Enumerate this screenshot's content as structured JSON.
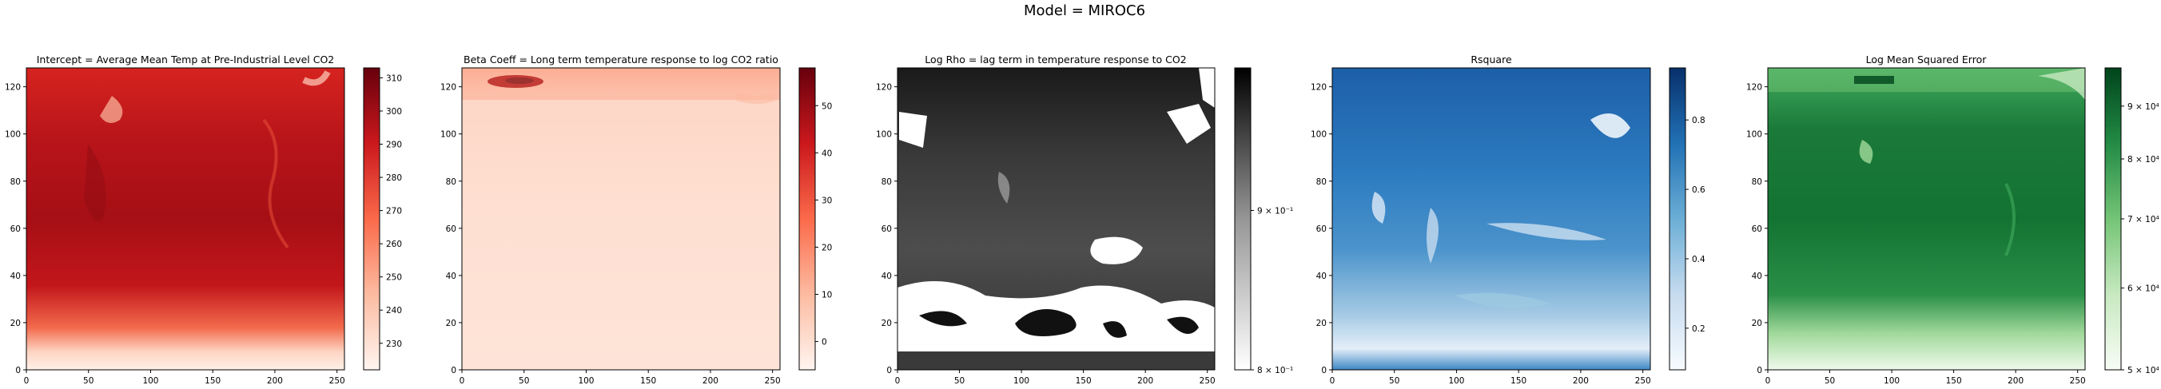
{
  "figure": {
    "suptitle": "Model = MIROC6"
  },
  "chart_data": [
    {
      "type": "heatmap",
      "title": "Intercept = Average Mean Temp at Pre-Industrial Level CO2",
      "cmap": "Reds",
      "xlim": [
        0,
        256
      ],
      "ylim": [
        0,
        128
      ],
      "xticks": [
        "0",
        "50",
        "100",
        "150",
        "200",
        "250"
      ],
      "yticks": [
        "0",
        "20",
        "40",
        "60",
        "80",
        "100",
        "120"
      ],
      "colorbar": {
        "range": [
          222,
          313
        ],
        "ticks": [
          230,
          240,
          250,
          260,
          270,
          280,
          290,
          300,
          310
        ],
        "tick_labels": [
          "230",
          "240",
          "250",
          "260",
          "270",
          "280",
          "290",
          "300",
          "310"
        ],
        "scale": "linear"
      }
    },
    {
      "type": "heatmap",
      "title": "Beta Coeff = Long term temperature response to log CO2 ratio",
      "cmap": "Reds",
      "xlim": [
        0,
        256
      ],
      "ylim": [
        0,
        128
      ],
      "xticks": [
        "0",
        "50",
        "100",
        "150",
        "200",
        "250"
      ],
      "yticks": [
        "0",
        "20",
        "40",
        "60",
        "80",
        "100",
        "120"
      ],
      "colorbar": {
        "range": [
          -6,
          58
        ],
        "ticks": [
          0,
          10,
          20,
          30,
          40,
          50
        ],
        "tick_labels": [
          "0",
          "10",
          "20",
          "30",
          "40",
          "50"
        ],
        "scale": "linear"
      }
    },
    {
      "type": "heatmap",
      "title": "Log Rho =  lag  term  in  temperature  response  to  CO2",
      "cmap": "Greys",
      "xlim": [
        0,
        256
      ],
      "ylim": [
        0,
        128
      ],
      "xticks": [
        "0",
        "50",
        "100",
        "150",
        "200",
        "250"
      ],
      "yticks": [
        "0",
        "20",
        "40",
        "60",
        "80",
        "100",
        "120"
      ],
      "colorbar": {
        "range": [
          0.8,
          1.0
        ],
        "ticks": [
          0.8,
          0.9
        ],
        "tick_labels": [
          "8 × 10⁻¹",
          "9 × 10⁻¹"
        ],
        "scale": "log"
      }
    },
    {
      "type": "heatmap",
      "title": "Rsquare",
      "cmap": "Blues",
      "xlim": [
        0,
        256
      ],
      "ylim": [
        0,
        128
      ],
      "xticks": [
        "0",
        "50",
        "100",
        "150",
        "200",
        "250"
      ],
      "yticks": [
        "0",
        "20",
        "40",
        "60",
        "80",
        "100",
        "120"
      ],
      "colorbar": {
        "range": [
          0.08,
          0.95
        ],
        "ticks": [
          0.2,
          0.4,
          0.6,
          0.8
        ],
        "tick_labels": [
          "0.2",
          "0.4",
          "0.6",
          "0.8"
        ],
        "scale": "linear"
      }
    },
    {
      "type": "heatmap",
      "title": "Log Mean Squared Error",
      "cmap": "Greens",
      "xlim": [
        0,
        256
      ],
      "ylim": [
        0,
        128
      ],
      "xticks": [
        "0",
        "50",
        "100",
        "150",
        "200",
        "250"
      ],
      "yticks": [
        "0",
        "20",
        "40",
        "60",
        "80",
        "100",
        "120"
      ],
      "colorbar": {
        "range": [
          50000,
          98000
        ],
        "ticks": [
          50000,
          60000,
          70000,
          80000,
          90000
        ],
        "tick_labels": [
          "5 × 10⁴",
          "6 × 10⁴",
          "7 × 10⁴",
          "8 × 10⁴",
          "9 × 10⁴"
        ],
        "scale": "log"
      }
    }
  ]
}
